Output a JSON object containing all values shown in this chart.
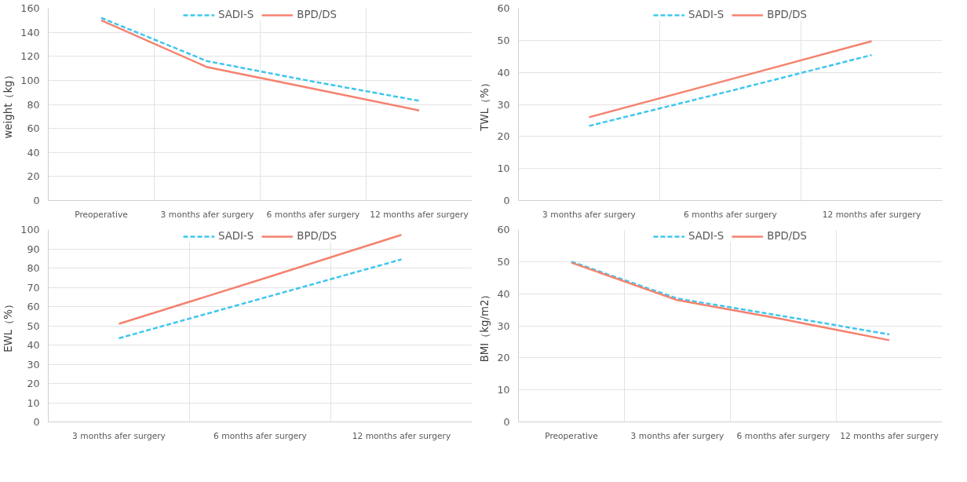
{
  "chart_data": [
    {
      "type": "line",
      "ylabel": "weight（kg）",
      "categories": [
        "Preoperative",
        "3 months afer surgery",
        "6 months afer surgery",
        "12 months afer surgery"
      ],
      "ylim": [
        0,
        160
      ],
      "yticks": [
        0,
        20,
        40,
        60,
        80,
        100,
        120,
        140,
        160
      ],
      "grid": true,
      "legend": "top",
      "series": [
        {
          "name": "SADI-S",
          "color": "#3ec6f0",
          "line_style": "dashed",
          "values": [
            152,
            116,
            99,
            83
          ]
        },
        {
          "name": "BPD/DS",
          "color": "#f4826f",
          "line_style": "solid",
          "values": [
            150,
            111,
            93,
            75
          ]
        }
      ]
    },
    {
      "type": "line",
      "ylabel": "TWL（%）",
      "categories": [
        "3 months afer surgery",
        "6 months afer surgery",
        "12 months afer surgery"
      ],
      "ylim": [
        0,
        60
      ],
      "yticks": [
        0,
        10,
        20,
        30,
        40,
        50,
        60
      ],
      "grid": true,
      "legend": "top",
      "series": [
        {
          "name": "SADI-S",
          "color": "#3ec6f0",
          "line_style": "dashed",
          "values": [
            23.3,
            34.2,
            45.4
          ]
        },
        {
          "name": "BPD/DS",
          "color": "#f4826f",
          "line_style": "solid",
          "values": [
            26,
            37.8,
            49.7
          ]
        }
      ]
    },
    {
      "type": "line",
      "ylabel": "EWL（%）",
      "categories": [
        "3 months afer surgery",
        "6 months afer surgery",
        "12 months afer surgery"
      ],
      "ylim": [
        0,
        100
      ],
      "yticks": [
        0,
        10,
        20,
        30,
        40,
        50,
        60,
        70,
        80,
        90,
        100
      ],
      "grid": true,
      "legend": "top",
      "series": [
        {
          "name": "SADI-S",
          "color": "#3ec6f0",
          "line_style": "dashed",
          "values": [
            43.5,
            64,
            84.5
          ]
        },
        {
          "name": "BPD/DS",
          "color": "#f4826f",
          "line_style": "solid",
          "values": [
            51,
            74,
            97.3
          ]
        }
      ]
    },
    {
      "type": "line",
      "ylabel": "BMI（kg/m2）",
      "categories": [
        "Preoperative",
        "3 months afer surgery",
        "6 months afer surgery",
        "12 months afer surgery"
      ],
      "ylim": [
        0,
        60
      ],
      "yticks": [
        0,
        10,
        20,
        30,
        40,
        50,
        60
      ],
      "grid": true,
      "legend": "top",
      "series": [
        {
          "name": "SADI-S",
          "color": "#3ec6f0",
          "line_style": "dashed",
          "values": [
            50,
            38.5,
            33,
            27.3
          ]
        },
        {
          "name": "BPD/DS",
          "color": "#f4826f",
          "line_style": "solid",
          "values": [
            49.7,
            38,
            32,
            25.5
          ]
        }
      ]
    }
  ]
}
